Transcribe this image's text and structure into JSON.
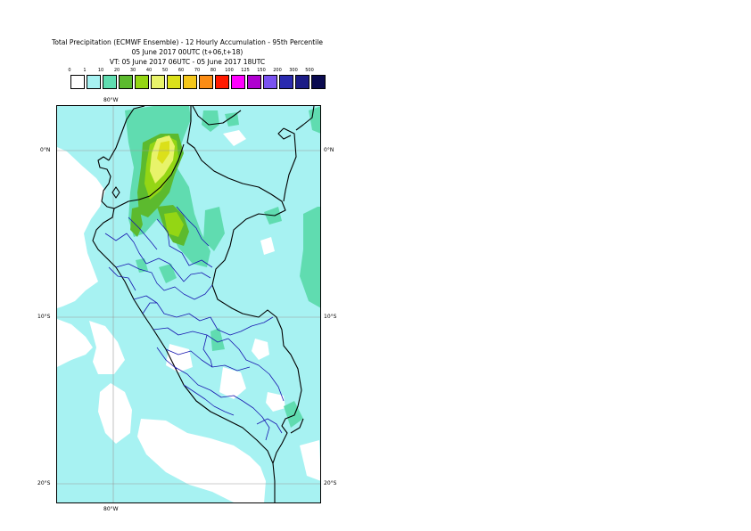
{
  "header": {
    "line1": "Total Precipitation (ECMWF Ensemble) - 12 Hourly Accumulation - 95th Percentile",
    "line2": "05 June 2017 00UTC (t+06,t+18)",
    "line3": "VT: 05 June 2017 06UTC - 05 June 2017 18UTC"
  },
  "legend": {
    "thresholds": [
      "0",
      "1",
      "10",
      "20",
      "30",
      "40",
      "50",
      "60",
      "70",
      "80",
      "100",
      "125",
      "150",
      "200",
      "300",
      "500"
    ],
    "colors": [
      "#ffffff",
      "#a7f2f2",
      "#60dcb0",
      "#5cba2e",
      "#94d614",
      "#e8f36a",
      "#dbe01a",
      "#f4c61a",
      "#fb8c14",
      "#ff1a00",
      "#ff00ff",
      "#b000d0",
      "#7a52f0",
      "#2a2aaf",
      "#1c1c86",
      "#0b0b50"
    ]
  },
  "axes": {
    "lon_top": "80°W",
    "lon_bottom": "80°W",
    "lat_left": [
      "0°N",
      "10°S",
      "20°S"
    ],
    "lat_right": [
      "0°N",
      "10°S",
      "20°S"
    ]
  }
}
